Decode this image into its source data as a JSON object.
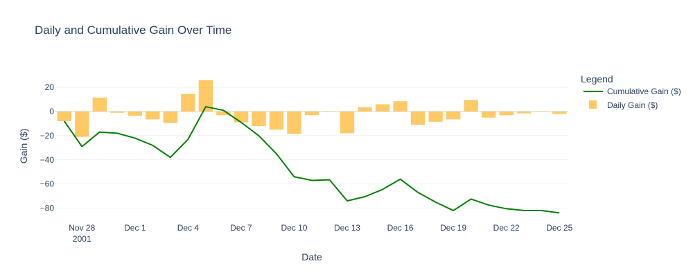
{
  "chart_data": {
    "type": "bar+line",
    "title": "Daily and Cumulative Gain Over Time",
    "xlabel": "Date",
    "ylabel": "Gain ($)",
    "ylim": [
      -90,
      35
    ],
    "y_ticks": [
      20,
      0,
      -20,
      -40,
      -60,
      -80
    ],
    "x_ticks": [
      {
        "date": "2001-11-28",
        "label": "Nov 28",
        "sublabel": "2001"
      },
      {
        "date": "2001-12-01",
        "label": "Dec 1"
      },
      {
        "date": "2001-12-04",
        "label": "Dec 4"
      },
      {
        "date": "2001-12-07",
        "label": "Dec 7"
      },
      {
        "date": "2001-12-10",
        "label": "Dec 10"
      },
      {
        "date": "2001-12-13",
        "label": "Dec 13"
      },
      {
        "date": "2001-12-16",
        "label": "Dec 16"
      },
      {
        "date": "2001-12-19",
        "label": "Dec 19"
      },
      {
        "date": "2001-12-22",
        "label": "Dec 22"
      },
      {
        "date": "2001-12-25",
        "label": "Dec 25"
      }
    ],
    "x": [
      "2001-11-27",
      "2001-11-28",
      "2001-11-29",
      "2001-11-30",
      "2001-12-01",
      "2001-12-02",
      "2001-12-03",
      "2001-12-04",
      "2001-12-05",
      "2001-12-06",
      "2001-12-07",
      "2001-12-08",
      "2001-12-09",
      "2001-12-10",
      "2001-12-11",
      "2001-12-12",
      "2001-12-13",
      "2001-12-14",
      "2001-12-15",
      "2001-12-16",
      "2001-12-17",
      "2001-12-18",
      "2001-12-19",
      "2001-12-20",
      "2001-12-21",
      "2001-12-22",
      "2001-12-23",
      "2001-12-24",
      "2001-12-25"
    ],
    "grid": true,
    "legend_title": "Legend",
    "legend_position": "right",
    "series": [
      {
        "name": "Cumulative Gain ($)",
        "type": "line",
        "color": "#008000",
        "values": [
          -8,
          -29,
          -17,
          -18,
          -22,
          -28,
          -38,
          -23,
          4,
          1,
          -9,
          -20,
          -35,
          -54,
          -57,
          -56.5,
          -74,
          -70.5,
          -64.5,
          -56,
          -67,
          -75,
          -82,
          -72.5,
          -77.5,
          -80.5,
          -82,
          -82,
          -84
        ]
      },
      {
        "name": "Daily Gain ($)",
        "type": "bar",
        "color": "#FFA500",
        "opacity": 0.6,
        "values": [
          -8,
          -21,
          11.5,
          -1,
          -3.5,
          -6.5,
          -9.5,
          14.5,
          26,
          -3,
          -9,
          -12,
          -15,
          -18.5,
          -3,
          0,
          -18,
          3.5,
          6,
          8.5,
          -11,
          -8.5,
          -6.5,
          9.5,
          -5,
          -3,
          -1.5,
          0,
          -2
        ]
      }
    ]
  }
}
